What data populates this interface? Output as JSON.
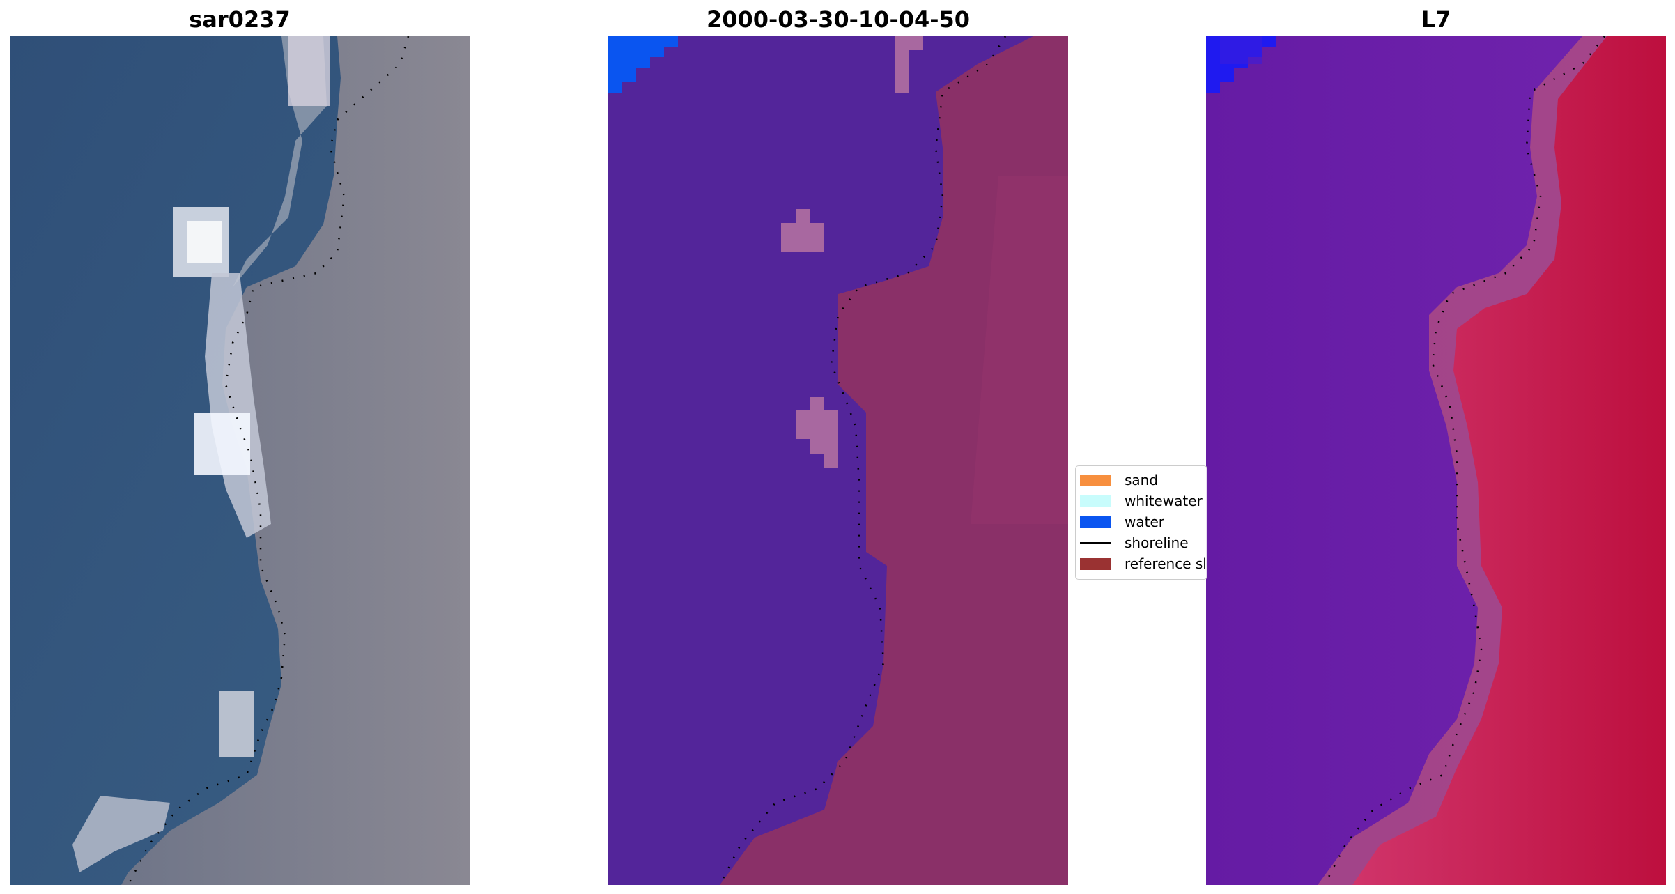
{
  "panels": [
    {
      "title": "sar0237"
    },
    {
      "title": "2000-03-30-10-04-50"
    },
    {
      "title": "L7"
    }
  ],
  "legend": {
    "items": [
      {
        "label": "sand",
        "kind": "patch",
        "color": "#f78f3e"
      },
      {
        "label": "whitewater",
        "kind": "patch",
        "color": "#c8fcfc"
      },
      {
        "label": "water",
        "kind": "patch",
        "color": "#0a55f0"
      },
      {
        "label": "shoreline",
        "kind": "line",
        "color": "#000000"
      },
      {
        "label": "reference sl",
        "kind": "patch",
        "color": "#9a3232"
      }
    ]
  },
  "colors": {
    "rgb_water": "#3c5a7e",
    "rgb_land": "#7d7e8a",
    "class_water": "#53259a",
    "class_land": "#8a3068",
    "class_blue": "#0a55f0",
    "mndwi_water": "#6a1ea8",
    "mndwi_land": "#c21a50",
    "mndwi_blue": "#1f1af0"
  }
}
